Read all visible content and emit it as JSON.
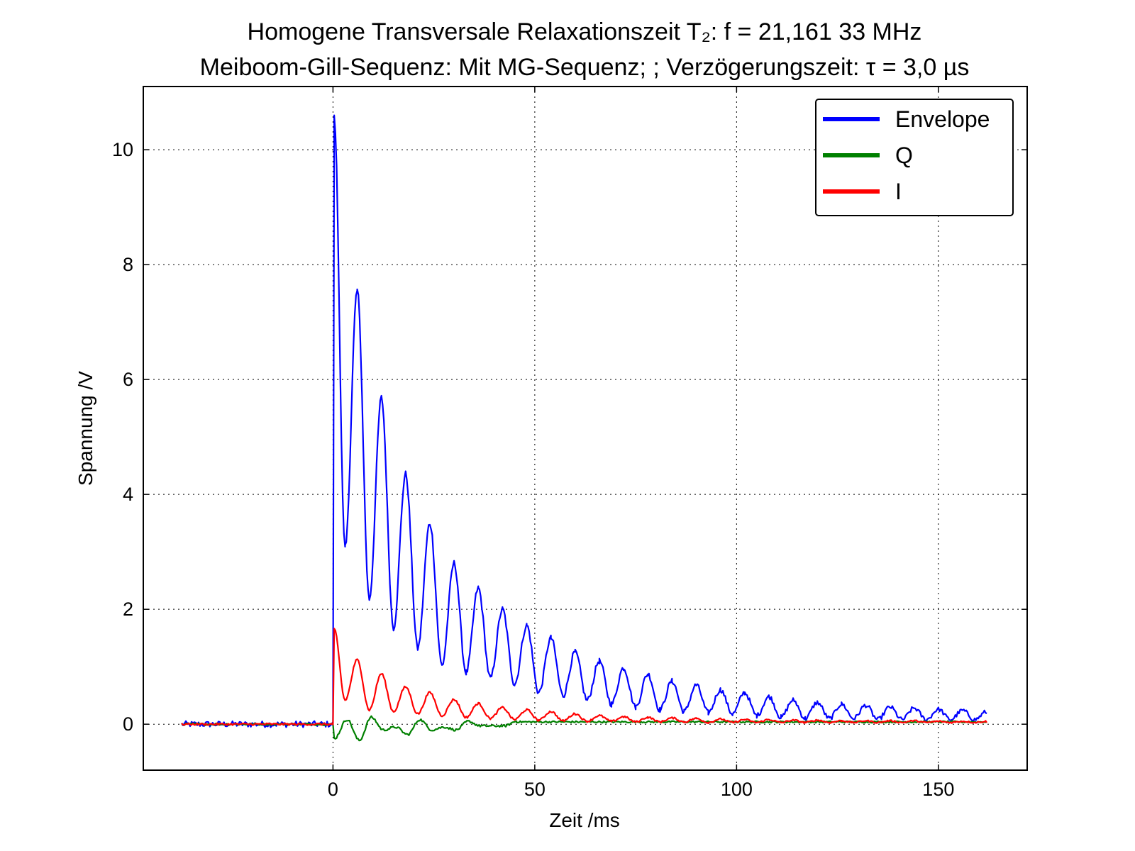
{
  "chart_data": {
    "type": "line",
    "title_line1": "Homogene Transversale Relaxationszeit T₂: f = 21,161 33 MHz",
    "title_line2": "Meiboom-Gill-Sequenz: Mit MG-Sequenz; ; Verzögerungszeit: τ = 3,0 µs",
    "xlabel": "Zeit /ms",
    "ylabel": "Spannung /V",
    "xlim": [
      -47,
      172
    ],
    "ylim": [
      -0.8,
      11.1
    ],
    "xticks": [
      0,
      50,
      100,
      150
    ],
    "yticks": [
      0,
      2,
      4,
      6,
      8,
      10
    ],
    "xtick_labels": [
      "0",
      "50",
      "100",
      "150"
    ],
    "ytick_labels": [
      "0",
      "2",
      "4",
      "6",
      "8",
      "10"
    ],
    "grid": true,
    "legend_position": "top-right",
    "echo_period_ms": 6.0,
    "series": [
      {
        "name": "Envelope",
        "color": "#0000ff",
        "baseline": 0.0,
        "echo_peaks": [
          {
            "x": 0.3,
            "y": 10.55
          },
          {
            "x": 6.0,
            "y": 7.55
          },
          {
            "x": 12.0,
            "y": 5.68
          },
          {
            "x": 18.0,
            "y": 4.35
          },
          {
            "x": 24.0,
            "y": 3.5
          },
          {
            "x": 30.0,
            "y": 2.8
          },
          {
            "x": 36.0,
            "y": 2.37
          },
          {
            "x": 42.0,
            "y": 2.0
          },
          {
            "x": 48.0,
            "y": 1.72
          },
          {
            "x": 54.0,
            "y": 1.5
          },
          {
            "x": 60.0,
            "y": 1.25
          },
          {
            "x": 66.0,
            "y": 1.1
          },
          {
            "x": 72.0,
            "y": 0.98
          },
          {
            "x": 78.0,
            "y": 0.87
          },
          {
            "x": 84.0,
            "y": 0.75
          },
          {
            "x": 90.0,
            "y": 0.68
          },
          {
            "x": 96.0,
            "y": 0.6
          },
          {
            "x": 102.0,
            "y": 0.55
          },
          {
            "x": 108.0,
            "y": 0.48
          },
          {
            "x": 114.0,
            "y": 0.42
          },
          {
            "x": 120.0,
            "y": 0.38
          },
          {
            "x": 126.0,
            "y": 0.35
          },
          {
            "x": 132.0,
            "y": 0.33
          },
          {
            "x": 138.0,
            "y": 0.3
          },
          {
            "x": 144.0,
            "y": 0.28
          },
          {
            "x": 150.0,
            "y": 0.26
          },
          {
            "x": 156.0,
            "y": 0.24
          },
          {
            "x": 162.0,
            "y": 0.22
          }
        ],
        "echo_minima": [
          {
            "x": 3.0,
            "y": 3.05
          },
          {
            "x": 9.0,
            "y": 2.18
          },
          {
            "x": 15.0,
            "y": 1.68
          },
          {
            "x": 21.0,
            "y": 1.32
          },
          {
            "x": 27.0,
            "y": 1.02
          },
          {
            "x": 33.0,
            "y": 0.9
          },
          {
            "x": 39.0,
            "y": 0.8
          },
          {
            "x": 45.0,
            "y": 0.7
          },
          {
            "x": 51.0,
            "y": 0.55
          },
          {
            "x": 57.0,
            "y": 0.5
          },
          {
            "x": 63.0,
            "y": 0.42
          },
          {
            "x": 69.0,
            "y": 0.35
          },
          {
            "x": 75.0,
            "y": 0.3
          },
          {
            "x": 81.0,
            "y": 0.25
          },
          {
            "x": 87.0,
            "y": 0.22
          },
          {
            "x": 93.0,
            "y": 0.2
          },
          {
            "x": 99.0,
            "y": 0.18
          },
          {
            "x": 105.0,
            "y": 0.15
          },
          {
            "x": 111.0,
            "y": 0.12
          },
          {
            "x": 117.0,
            "y": 0.1
          },
          {
            "x": 123.0,
            "y": 0.1
          },
          {
            "x": 129.0,
            "y": 0.1
          },
          {
            "x": 135.0,
            "y": 0.08
          },
          {
            "x": 141.0,
            "y": 0.08
          },
          {
            "x": 147.0,
            "y": 0.08
          },
          {
            "x": 153.0,
            "y": 0.08
          },
          {
            "x": 159.0,
            "y": 0.08
          }
        ],
        "x_range": [
          -37.5,
          162
        ]
      },
      {
        "name": "Q",
        "color": "#008000",
        "baseline": 0.0,
        "echo_peaks": [
          {
            "x": 0.3,
            "y": -0.25
          },
          {
            "x": 3.5,
            "y": 0.08
          },
          {
            "x": 9.5,
            "y": 0.12
          },
          {
            "x": 15.5,
            "y": -0.05
          },
          {
            "x": 21.5,
            "y": 0.08
          },
          {
            "x": 27.5,
            "y": -0.05
          },
          {
            "x": 33.5,
            "y": 0.05
          },
          {
            "x": 45.5,
            "y": 0.05
          }
        ],
        "echo_minima": [
          {
            "x": 6.5,
            "y": -0.28
          },
          {
            "x": 12.5,
            "y": -0.1
          },
          {
            "x": 18.5,
            "y": -0.18
          },
          {
            "x": 24.5,
            "y": -0.1
          },
          {
            "x": 30.5,
            "y": -0.1
          },
          {
            "x": 36.5,
            "y": -0.03
          },
          {
            "x": 42.5,
            "y": -0.03
          }
        ],
        "x_range": [
          -37.5,
          162
        ]
      },
      {
        "name": "I",
        "color": "#ff0000",
        "baseline": 0.0,
        "echo_peaks": [
          {
            "x": 0.3,
            "y": 1.65
          },
          {
            "x": 6.0,
            "y": 1.12
          },
          {
            "x": 12.0,
            "y": 0.88
          },
          {
            "x": 18.0,
            "y": 0.65
          },
          {
            "x": 24.0,
            "y": 0.55
          },
          {
            "x": 30.0,
            "y": 0.43
          },
          {
            "x": 36.0,
            "y": 0.36
          },
          {
            "x": 42.0,
            "y": 0.29
          },
          {
            "x": 48.0,
            "y": 0.25
          },
          {
            "x": 54.0,
            "y": 0.22
          },
          {
            "x": 60.0,
            "y": 0.18
          },
          {
            "x": 66.0,
            "y": 0.15
          },
          {
            "x": 72.0,
            "y": 0.13
          },
          {
            "x": 78.0,
            "y": 0.12
          },
          {
            "x": 84.0,
            "y": 0.11
          },
          {
            "x": 90.0,
            "y": 0.1
          },
          {
            "x": 96.0,
            "y": 0.09
          },
          {
            "x": 102.0,
            "y": 0.08
          },
          {
            "x": 108.0,
            "y": 0.08
          },
          {
            "x": 114.0,
            "y": 0.07
          },
          {
            "x": 120.0,
            "y": 0.07
          },
          {
            "x": 126.0,
            "y": 0.06
          },
          {
            "x": 132.0,
            "y": 0.06
          },
          {
            "x": 138.0,
            "y": 0.06
          },
          {
            "x": 144.0,
            "y": 0.06
          },
          {
            "x": 150.0,
            "y": 0.05
          },
          {
            "x": 156.0,
            "y": 0.05
          },
          {
            "x": 162.0,
            "y": 0.05
          }
        ],
        "echo_minima": [
          {
            "x": 3.0,
            "y": 0.42
          },
          {
            "x": 9.0,
            "y": 0.25
          },
          {
            "x": 15.0,
            "y": 0.22
          },
          {
            "x": 21.0,
            "y": 0.18
          },
          {
            "x": 27.0,
            "y": 0.15
          },
          {
            "x": 33.0,
            "y": 0.12
          },
          {
            "x": 39.0,
            "y": 0.1
          },
          {
            "x": 45.0,
            "y": 0.08
          },
          {
            "x": 51.0,
            "y": 0.07
          },
          {
            "x": 57.0,
            "y": 0.06
          },
          {
            "x": 63.0,
            "y": 0.05
          },
          {
            "x": 69.0,
            "y": 0.05
          },
          {
            "x": 75.0,
            "y": 0.04
          },
          {
            "x": 81.0,
            "y": 0.04
          },
          {
            "x": 87.0,
            "y": 0.04
          },
          {
            "x": 93.0,
            "y": 0.03
          },
          {
            "x": 99.0,
            "y": 0.03
          },
          {
            "x": 105.0,
            "y": 0.03
          },
          {
            "x": 111.0,
            "y": 0.03
          },
          {
            "x": 117.0,
            "y": 0.03
          },
          {
            "x": 123.0,
            "y": 0.03
          },
          {
            "x": 129.0,
            "y": 0.03
          },
          {
            "x": 135.0,
            "y": 0.03
          },
          {
            "x": 141.0,
            "y": 0.03
          },
          {
            "x": 147.0,
            "y": 0.03
          },
          {
            "x": 153.0,
            "y": 0.03
          },
          {
            "x": 159.0,
            "y": 0.03
          }
        ],
        "x_range": [
          -37.5,
          162
        ]
      }
    ]
  }
}
